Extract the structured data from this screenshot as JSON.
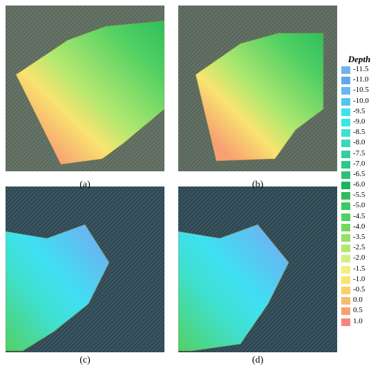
{
  "panels": [
    {
      "label": "(a)"
    },
    {
      "label": "(b)"
    },
    {
      "label": "(c)"
    },
    {
      "label": "(d)"
    }
  ],
  "legend": {
    "title": "Depth",
    "items": [
      {
        "label": "-11.5",
        "color": "#72b2ee"
      },
      {
        "label": "-11.0",
        "color": "#5da9ef"
      },
      {
        "label": "-10.5",
        "color": "#66b8f2"
      },
      {
        "label": "-10.0",
        "color": "#4fc6f2"
      },
      {
        "label": "-9.5",
        "color": "#3fe0f2"
      },
      {
        "label": "-9.0",
        "color": "#35e8e6"
      },
      {
        "label": "-8.5",
        "color": "#3fe0cf"
      },
      {
        "label": "-8.0",
        "color": "#3ed6b8"
      },
      {
        "label": "-7.5",
        "color": "#34cfa0"
      },
      {
        "label": "-7.0",
        "color": "#2fc88c"
      },
      {
        "label": "-6.5",
        "color": "#2dc07c"
      },
      {
        "label": "-6.0",
        "color": "#1fb45c"
      },
      {
        "label": "-5.5",
        "color": "#2fbe5e"
      },
      {
        "label": "-5.0",
        "color": "#3ec862"
      },
      {
        "label": "-4.5",
        "color": "#52d062"
      },
      {
        "label": "-4.0",
        "color": "#72d862"
      },
      {
        "label": "-3.5",
        "color": "#92e064"
      },
      {
        "label": "-2.5",
        "color": "#b2e870"
      },
      {
        "label": "-2.0",
        "color": "#d2f080"
      },
      {
        "label": "-1.5",
        "color": "#f0f07e"
      },
      {
        "label": "-1.0",
        "color": "#f8e470"
      },
      {
        "label": "-0.5",
        "color": "#f8cf68"
      },
      {
        "label": "0.0",
        "color": "#f8bb72"
      },
      {
        "label": "0.5",
        "color": "#f8a072"
      },
      {
        "label": "1.0",
        "color": "#f88480"
      }
    ]
  }
}
